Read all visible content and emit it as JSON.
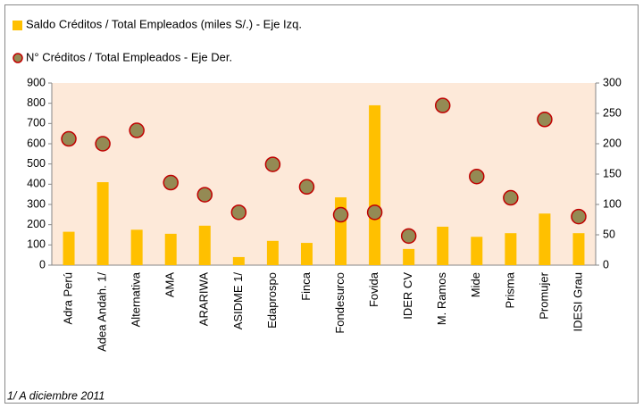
{
  "chart_data": {
    "type": "bar",
    "categories": [
      "Adra Perú",
      "Adea Andah. 1/",
      "Alternativa",
      "AMA",
      "ARARIWA",
      "ASIDME 1/",
      "Edaprospo",
      "Finca",
      "Fondesurco",
      "Fovida",
      "IDER CV",
      "M. Ramos",
      "Mide",
      "Prisma",
      "Promujer",
      "IDESI Grau"
    ],
    "series": [
      {
        "name": "Saldo Créditos / Total Empleados (miles S/.) - Eje Izq.",
        "type": "bar",
        "color": "#ffc000",
        "values": [
          165,
          410,
          175,
          155,
          195,
          40,
          120,
          110,
          335,
          790,
          80,
          190,
          140,
          158,
          255,
          158
        ]
      },
      {
        "name": "N° Créditos / Total Empleados - Eje Der.",
        "type": "scatter",
        "axis": "y2",
        "color": "#948a54",
        "edge_color": "#c00000",
        "values": [
          208,
          200,
          222,
          136,
          116,
          87,
          166,
          129,
          83,
          87,
          48,
          263,
          146,
          111,
          240,
          80
        ]
      }
    ],
    "ylim": [
      0,
      900
    ],
    "yticks": [
      0,
      100,
      200,
      300,
      400,
      500,
      600,
      700,
      800,
      900
    ],
    "y2lim": [
      0,
      300
    ],
    "y2ticks": [
      0,
      50,
      100,
      150,
      200,
      250,
      300
    ],
    "plot_background": "#fde9d9",
    "footnote": "1/ A diciembre 2011"
  }
}
